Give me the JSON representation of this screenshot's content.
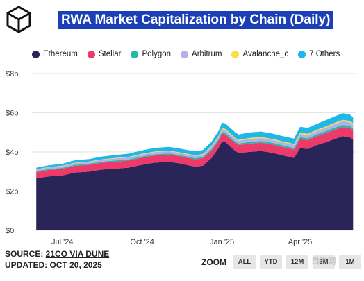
{
  "page": {
    "title": "RWA Market Capitalization by Chain (Daily)",
    "source_prefix": "SOURCE: ",
    "source_link": "21CO VIA DUNE",
    "updated": "UPDATED: OCT 20, 2025",
    "zoom_label": "ZOOM",
    "zoom_buttons": [
      "ALL",
      "YTD",
      "12M",
      "3M",
      "1M"
    ],
    "watermark": "自界网"
  },
  "colors": {
    "Ethereum": "#2a2559",
    "Stellar": "#ee3a6b",
    "Polygon": "#2ab7a6",
    "Arbitrum": "#b2b2e8",
    "Avalanche_c": "#f5e04a",
    "7 Others": "#1fb6e8",
    "title_bg": "#1b3fb6"
  },
  "chart_data": {
    "type": "area",
    "stacked": true,
    "title": "RWA Market Capitalization by Chain (Daily)",
    "x_unit": "month",
    "x": [
      "2024-06-01",
      "2024-06-15",
      "2024-07-01",
      "2024-07-15",
      "2024-08-01",
      "2024-08-15",
      "2024-09-01",
      "2024-09-15",
      "2024-10-01",
      "2024-10-15",
      "2024-11-01",
      "2024-11-15",
      "2024-12-01",
      "2024-12-10",
      "2024-12-20",
      "2024-12-28",
      "2025-01-01",
      "2025-01-05",
      "2025-01-10",
      "2025-01-15",
      "2025-01-20",
      "2025-02-01",
      "2025-02-15",
      "2025-03-01",
      "2025-03-10",
      "2025-03-15",
      "2025-03-20",
      "2025-03-25",
      "2025-04-01",
      "2025-04-10",
      "2025-04-20",
      "2025-05-01",
      "2025-05-10",
      "2025-05-20",
      "2025-05-28",
      "2025-06-01"
    ],
    "series": [
      {
        "name": "Ethereum",
        "values": [
          2.65,
          2.75,
          2.8,
          2.95,
          3.0,
          3.1,
          3.15,
          3.2,
          3.35,
          3.45,
          3.5,
          3.4,
          3.25,
          3.3,
          3.7,
          4.2,
          4.55,
          4.5,
          4.3,
          4.1,
          3.95,
          4.0,
          4.05,
          3.95,
          3.85,
          3.8,
          3.75,
          3.7,
          4.2,
          4.15,
          4.35,
          4.5,
          4.65,
          4.8,
          4.75,
          4.65
        ]
      },
      {
        "name": "Stellar",
        "values": [
          0.32,
          0.33,
          0.34,
          0.34,
          0.35,
          0.35,
          0.36,
          0.36,
          0.36,
          0.37,
          0.37,
          0.37,
          0.37,
          0.38,
          0.38,
          0.38,
          0.4,
          0.4,
          0.4,
          0.4,
          0.4,
          0.42,
          0.42,
          0.42,
          0.42,
          0.42,
          0.42,
          0.42,
          0.45,
          0.45,
          0.45,
          0.47,
          0.47,
          0.47,
          0.47,
          0.45
        ]
      },
      {
        "name": "Polygon",
        "values": [
          0.05,
          0.05,
          0.05,
          0.05,
          0.05,
          0.05,
          0.06,
          0.06,
          0.06,
          0.06,
          0.06,
          0.06,
          0.06,
          0.06,
          0.07,
          0.07,
          0.08,
          0.08,
          0.08,
          0.08,
          0.08,
          0.09,
          0.09,
          0.09,
          0.09,
          0.09,
          0.09,
          0.09,
          0.1,
          0.1,
          0.1,
          0.1,
          0.11,
          0.11,
          0.11,
          0.11
        ]
      },
      {
        "name": "Arbitrum",
        "values": [
          0.08,
          0.08,
          0.09,
          0.09,
          0.09,
          0.1,
          0.1,
          0.1,
          0.11,
          0.11,
          0.11,
          0.11,
          0.12,
          0.12,
          0.12,
          0.13,
          0.14,
          0.14,
          0.14,
          0.14,
          0.14,
          0.15,
          0.15,
          0.15,
          0.15,
          0.15,
          0.15,
          0.15,
          0.17,
          0.17,
          0.17,
          0.18,
          0.18,
          0.19,
          0.19,
          0.19
        ]
      },
      {
        "name": "Avalanche_c",
        "values": [
          0.02,
          0.02,
          0.02,
          0.02,
          0.02,
          0.02,
          0.03,
          0.03,
          0.03,
          0.03,
          0.03,
          0.03,
          0.03,
          0.04,
          0.04,
          0.04,
          0.05,
          0.05,
          0.05,
          0.05,
          0.05,
          0.05,
          0.05,
          0.05,
          0.05,
          0.05,
          0.05,
          0.05,
          0.06,
          0.06,
          0.06,
          0.06,
          0.07,
          0.07,
          0.07,
          0.07
        ]
      },
      {
        "name": "7 Others",
        "values": [
          0.08,
          0.09,
          0.1,
          0.12,
          0.13,
          0.14,
          0.15,
          0.16,
          0.17,
          0.18,
          0.19,
          0.19,
          0.2,
          0.2,
          0.22,
          0.25,
          0.28,
          0.28,
          0.28,
          0.28,
          0.27,
          0.28,
          0.28,
          0.27,
          0.27,
          0.27,
          0.27,
          0.27,
          0.3,
          0.3,
          0.3,
          0.32,
          0.32,
          0.33,
          0.33,
          0.3
        ]
      }
    ],
    "y_ticks": [
      0,
      2,
      4,
      6,
      8
    ],
    "y_tick_labels": [
      "$0",
      "$2b",
      "$4b",
      "$6b",
      "$8b"
    ],
    "ylim": [
      0,
      8
    ],
    "x_ticks": [
      "2024-07-01",
      "2024-10-01",
      "2025-01-01",
      "2025-04-01"
    ],
    "x_tick_labels": [
      "Jul '24",
      "Oct '24",
      "Jan '25",
      "Apr '25"
    ],
    "xlim": [
      "2024-05-27",
      "2025-06-04"
    ],
    "grid": true,
    "legend": "top-left"
  }
}
